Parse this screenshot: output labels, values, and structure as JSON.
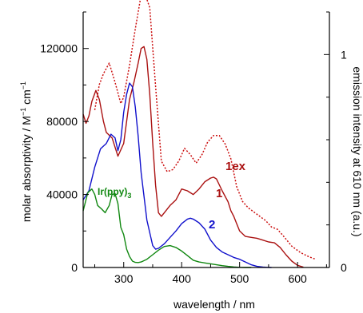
{
  "chart_data": {
    "type": "line",
    "title": "",
    "xlabel": "wavelength / nm",
    "ylabel_left": "molar absorptivity / M",
    "ylabel_left_sup1": "−1",
    "ylabel_left_mid": " cm",
    "ylabel_left_sup2": "−1",
    "ylabel_right": "emission intensity at 610 nm (a.u.)",
    "xlim": [
      230,
      655
    ],
    "ylim_left": [
      0,
      140000
    ],
    "ylim_right": [
      0,
      1.2
    ],
    "x_ticks": [
      300,
      400,
      500,
      600
    ],
    "x_tick_labels": [
      "300",
      "400",
      "500",
      "600"
    ],
    "y_left_ticks": [
      0,
      40000,
      80000,
      120000
    ],
    "y_left_tick_labels": [
      "0",
      "40000",
      "80000",
      "120000"
    ],
    "y_right_ticks": [
      0,
      1
    ],
    "y_right_tick_labels": [
      "0",
      "1"
    ],
    "grid": false,
    "series": [
      {
        "name": "1ex",
        "axis": "right",
        "style": "dotted",
        "color": "#cc1111",
        "x": [
          250,
          258,
          265,
          275,
          285,
          295,
          300,
          310,
          320,
          330,
          335,
          345,
          355,
          365,
          375,
          385,
          395,
          405,
          415,
          425,
          435,
          445,
          455,
          465,
          475,
          485,
          495,
          505,
          515,
          525,
          535,
          545,
          555,
          565,
          575,
          590,
          605,
          620,
          630
        ],
        "y": [
          0.74,
          0.86,
          0.91,
          0.96,
          0.87,
          0.77,
          0.8,
          0.95,
          1.12,
          1.28,
          1.3,
          1.22,
          0.85,
          0.5,
          0.45,
          0.46,
          0.5,
          0.56,
          0.53,
          0.49,
          0.53,
          0.59,
          0.62,
          0.62,
          0.58,
          0.51,
          0.38,
          0.31,
          0.28,
          0.26,
          0.24,
          0.22,
          0.19,
          0.18,
          0.15,
          0.1,
          0.07,
          0.05,
          0.04
        ]
      },
      {
        "name": "1",
        "axis": "left",
        "style": "solid",
        "color": "#aa1111",
        "x": [
          230,
          235,
          240,
          245,
          252,
          258,
          265,
          270,
          280,
          290,
          300,
          310,
          318,
          325,
          330,
          335,
          340,
          345,
          350,
          355,
          360,
          365,
          370,
          380,
          390,
          400,
          410,
          420,
          430,
          440,
          450,
          455,
          460,
          470,
          480,
          485,
          490,
          495,
          500,
          510,
          520,
          530,
          540,
          550,
          560,
          570,
          580,
          590,
          600,
          610
        ],
        "y": [
          84000,
          79000,
          83000,
          91000,
          97000,
          92000,
          80000,
          74000,
          71000,
          61000,
          68000,
          92000,
          102000,
          112000,
          120000,
          121000,
          114000,
          95000,
          68000,
          45000,
          30000,
          28000,
          30000,
          34000,
          37000,
          43000,
          42000,
          40000,
          43000,
          47000,
          49000,
          49500,
          48500,
          42000,
          36000,
          31000,
          28000,
          24000,
          20000,
          17000,
          16500,
          16000,
          15000,
          14000,
          13500,
          11000,
          7000,
          3500,
          1200,
          200
        ]
      },
      {
        "name": "2",
        "axis": "left",
        "style": "solid",
        "color": "#1111cc",
        "x": [
          230,
          240,
          250,
          260,
          270,
          278,
          285,
          290,
          295,
          300,
          305,
          310,
          315,
          320,
          325,
          330,
          340,
          350,
          355,
          360,
          370,
          380,
          390,
          400,
          410,
          415,
          420,
          430,
          440,
          450,
          460,
          470,
          480,
          490,
          500,
          510,
          520,
          530,
          540,
          550,
          555
        ],
        "y": [
          37000,
          42000,
          55000,
          65000,
          68000,
          73000,
          71000,
          64000,
          70000,
          85000,
          95000,
          101000,
          99000,
          88000,
          72000,
          52000,
          26000,
          12000,
          10000,
          10500,
          13000,
          16500,
          20000,
          24000,
          26500,
          27000,
          26500,
          24500,
          21000,
          15000,
          11000,
          8500,
          7000,
          5500,
          4500,
          3000,
          1500,
          600,
          200,
          50,
          0
        ]
      },
      {
        "name": "Ir(ppy)",
        "name_sub": "3",
        "axis": "left",
        "style": "solid",
        "color": "#118811",
        "x": [
          230,
          238,
          245,
          250,
          255,
          262,
          268,
          275,
          280,
          285,
          290,
          295,
          300,
          305,
          310,
          315,
          320,
          325,
          330,
          340,
          350,
          360,
          370,
          380,
          390,
          400,
          410,
          420,
          430,
          440,
          450,
          460,
          470,
          480,
          490,
          500,
          510,
          520
        ],
        "y": [
          31000,
          41000,
          43000,
          40000,
          34000,
          32000,
          30000,
          34000,
          40000,
          40500,
          35000,
          22000,
          18000,
          10000,
          6000,
          3500,
          2800,
          2700,
          3000,
          4500,
          7000,
          9500,
          11500,
          12000,
          11000,
          9000,
          6500,
          4000,
          3000,
          2500,
          2000,
          1500,
          1000,
          600,
          300,
          100,
          0,
          0
        ]
      }
    ],
    "labels": {
      "s1ex": "1ex",
      "s1": "1",
      "s2": "2",
      "irppy": "Ir(ppy)",
      "irppy_sub": "3"
    }
  }
}
